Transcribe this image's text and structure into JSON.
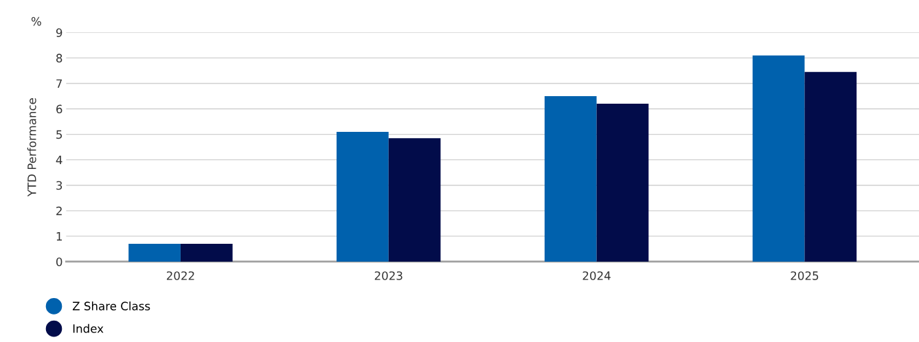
{
  "chart_data": {
    "type": "bar",
    "ylabel": "YTD Performance",
    "annotations": [
      "%"
    ],
    "categories": [
      "2022",
      "2023",
      "2024",
      "2025"
    ],
    "series": [
      {
        "name": "Z Share Class",
        "color": "#0061ad",
        "values": [
          0.7,
          5.1,
          6.5,
          8.1
        ]
      },
      {
        "name": "Index",
        "color": "#020c4a",
        "values": [
          0.7,
          4.85,
          6.2,
          7.45
        ]
      }
    ],
    "ylim": [
      0,
      9
    ],
    "yticks": [
      0,
      1,
      2,
      3,
      4,
      5,
      6,
      7,
      8,
      9
    ],
    "grid": "y",
    "legend": "bottom left"
  }
}
